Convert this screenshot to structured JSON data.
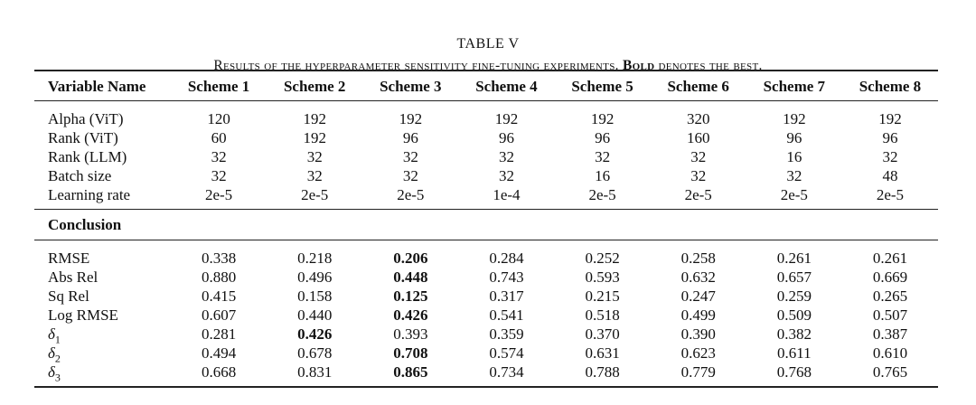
{
  "title": "TABLE V",
  "caption": {
    "text_before": "Results of the hyperparameter sensitivity fine-tuning experiments. ",
    "bold": "Bold",
    "text_after": " denotes the best."
  },
  "table": {
    "headers": [
      "Variable Name",
      "Scheme 1",
      "Scheme 2",
      "Scheme 3",
      "Scheme 4",
      "Scheme 5",
      "Scheme 6",
      "Scheme 7",
      "Scheme 8"
    ],
    "params": [
      {
        "label": "Alpha (ViT)",
        "values": [
          "120",
          "192",
          "192",
          "192",
          "192",
          "320",
          "192",
          "192"
        ]
      },
      {
        "label": "Rank (ViT)",
        "values": [
          "60",
          "192",
          "96",
          "96",
          "96",
          "160",
          "96",
          "96"
        ]
      },
      {
        "label": "Rank (LLM)",
        "values": [
          "32",
          "32",
          "32",
          "32",
          "32",
          "32",
          "16",
          "32"
        ]
      },
      {
        "label": "Batch size",
        "values": [
          "32",
          "32",
          "32",
          "32",
          "16",
          "32",
          "32",
          "48"
        ]
      },
      {
        "label": "Learning rate",
        "values": [
          "2e-5",
          "2e-5",
          "2e-5",
          "1e-4",
          "2e-5",
          "2e-5",
          "2e-5",
          "2e-5"
        ]
      }
    ],
    "section_label": "Conclusion",
    "metrics": [
      {
        "label": "RMSE",
        "values": [
          "0.338",
          "0.218",
          "0.206",
          "0.284",
          "0.252",
          "0.258",
          "0.261",
          "0.261"
        ],
        "best": 2
      },
      {
        "label": "Abs Rel",
        "values": [
          "0.880",
          "0.496",
          "0.448",
          "0.743",
          "0.593",
          "0.632",
          "0.657",
          "0.669"
        ],
        "best": 2
      },
      {
        "label": "Sq Rel",
        "values": [
          "0.415",
          "0.158",
          "0.125",
          "0.317",
          "0.215",
          "0.247",
          "0.259",
          "0.265"
        ],
        "best": 2
      },
      {
        "label": "Log RMSE",
        "values": [
          "0.607",
          "0.440",
          "0.426",
          "0.541",
          "0.518",
          "0.499",
          "0.509",
          "0.507"
        ],
        "best": 2
      },
      {
        "label": "δ",
        "sub": "1",
        "values": [
          "0.281",
          "0.426",
          "0.393",
          "0.359",
          "0.370",
          "0.390",
          "0.382",
          "0.387"
        ],
        "best": 1
      },
      {
        "label": "δ",
        "sub": "2",
        "values": [
          "0.494",
          "0.678",
          "0.708",
          "0.574",
          "0.631",
          "0.623",
          "0.611",
          "0.610"
        ],
        "best": 2
      },
      {
        "label": "δ",
        "sub": "3",
        "values": [
          "0.668",
          "0.831",
          "0.865",
          "0.734",
          "0.788",
          "0.779",
          "0.768",
          "0.765"
        ],
        "best": 2
      }
    ]
  }
}
